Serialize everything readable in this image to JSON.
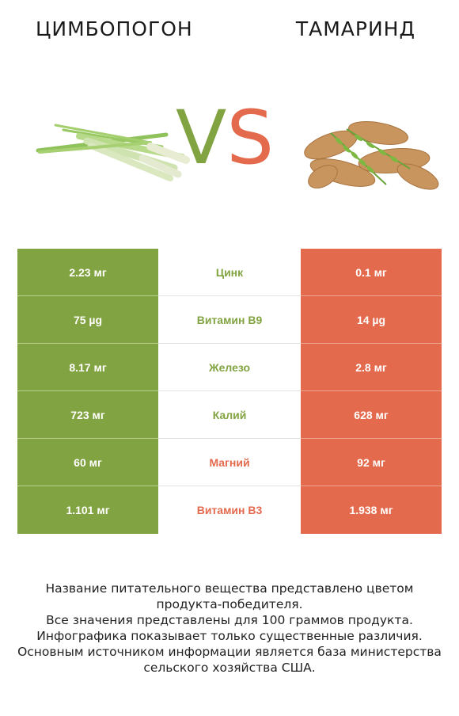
{
  "header": {
    "left_name": "ЦИМБОПОГОН",
    "right_name": "ТАМАРИНД",
    "vs_v": "V",
    "vs_s": "S"
  },
  "colors": {
    "left": "#82a341",
    "right": "#e36a4d"
  },
  "images": {
    "left": "lemongrass-image",
    "right": "tamarind-image"
  },
  "rows": [
    {
      "left": "2.23 мг",
      "nutrient": "Цинк",
      "right": "0.1 мг",
      "winner": "left"
    },
    {
      "left": "75 µg",
      "nutrient": "Витамин B9",
      "right": "14 µg",
      "winner": "left"
    },
    {
      "left": "8.17 мг",
      "nutrient": "Железо",
      "right": "2.8 мг",
      "winner": "left"
    },
    {
      "left": "723 мг",
      "nutrient": "Калий",
      "right": "628 мг",
      "winner": "left"
    },
    {
      "left": "60 мг",
      "nutrient": "Магний",
      "right": "92 мг",
      "winner": "right"
    },
    {
      "left": "1.101 мг",
      "nutrient": "Витамин B3",
      "right": "1.938 мг",
      "winner": "right"
    }
  ],
  "footer": {
    "line1": "Название питательного вещества представлено цветом",
    "line2": "продукта-победителя.",
    "line3": "Все значения представлены для 100 граммов продукта.",
    "line4": "Инфографика показывает только существенные различия.",
    "line5": "Основным источником информации является база министерства",
    "line6": "сельского хозяйства США."
  }
}
